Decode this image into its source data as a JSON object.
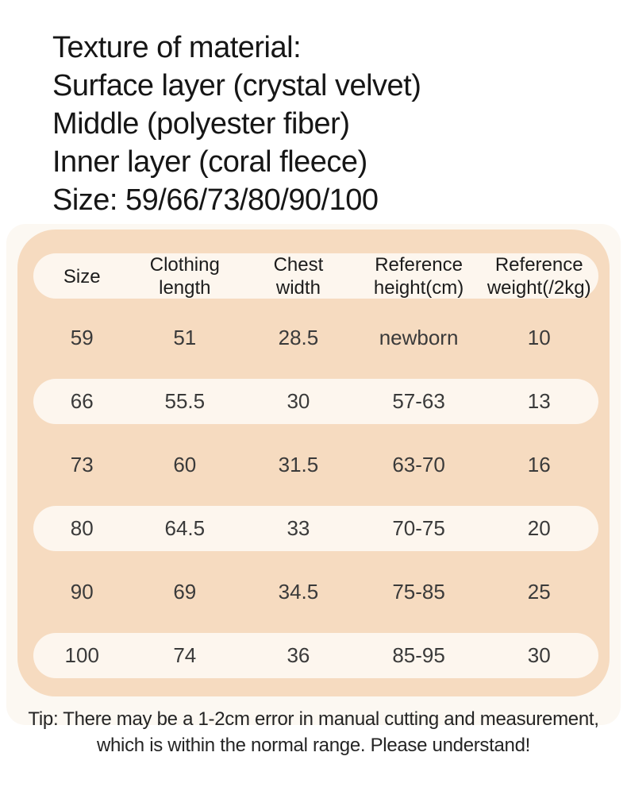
{
  "intro": {
    "lines": [
      "Texture of material:",
      "Surface layer (crystal velvet)",
      "Middle (polyester fiber)",
      "Inner layer (coral fleece)",
      "Size: 59/66/73/80/90/100"
    ]
  },
  "size_chart": {
    "headers": [
      "Size",
      "Clothing\nlength",
      "Chest\nwidth",
      "Reference\nheight(cm)",
      "Reference\nweight(/2kg)"
    ],
    "rows": [
      {
        "cells": [
          "59",
          "51",
          "28.5",
          "newborn",
          "10"
        ]
      },
      {
        "cells": [
          "66",
          "55.5",
          "30",
          "57-63",
          "13"
        ]
      },
      {
        "cells": [
          "73",
          "60",
          "31.5",
          "63-70",
          "16"
        ]
      },
      {
        "cells": [
          "80",
          "64.5",
          "33",
          "70-75",
          "20"
        ]
      },
      {
        "cells": [
          "90",
          "69",
          "34.5",
          "75-85",
          "25"
        ]
      },
      {
        "cells": [
          "100",
          "74",
          "36",
          "85-95",
          "30"
        ]
      }
    ],
    "tip": "Tip: There may be a 1-2cm error in manual cutting and measurement,\nwhich is within the normal range. Please understand!"
  },
  "colors": {
    "panel_peach": "#f6dbc0",
    "pill_cream": "#fdf6ee",
    "card_offwhite": "#fcf8f2",
    "text_dark": "#1c1c1c"
  }
}
